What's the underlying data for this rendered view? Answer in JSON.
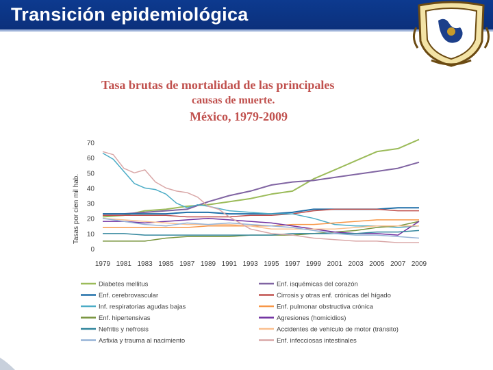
{
  "slide": {
    "title": "Transición epidemiológica"
  },
  "crest": {
    "icon": "unam-crest-icon"
  },
  "chart_data": {
    "type": "line",
    "title_lines": [
      "Tasa brutas de mortalidad de las principales",
      "causas de muerte.",
      "México, 1979-2009"
    ],
    "ylabel": "Tasas por cien mil hab.",
    "xlabel": "",
    "ylim": [
      0,
      70
    ],
    "yticks": [
      "70",
      "60",
      "50",
      "40",
      "30",
      "20",
      "10",
      "0"
    ],
    "xlim": [
      1979,
      2009
    ],
    "xticks": [
      "1979",
      "1981",
      "1983",
      "1985",
      "1987",
      "1989",
      "1991",
      "1993",
      "1995",
      "1997",
      "1999",
      "2001",
      "2003",
      "2005",
      "2007",
      "2009"
    ],
    "grid": false,
    "legend_position": "bottom",
    "series": [
      {
        "name": "Diabetes mellitus",
        "color": "#9bbb59",
        "width": 2,
        "x": [
          1979,
          1981,
          1983,
          1985,
          1987,
          1989,
          1991,
          1993,
          1995,
          1997,
          1999,
          2001,
          2003,
          2005,
          2007,
          2009
        ],
        "y": [
          21,
          22,
          25,
          26,
          28,
          29,
          31,
          33,
          36,
          38,
          46,
          52,
          58,
          64,
          66,
          72
        ]
      },
      {
        "name": "Enf. isquémicas del corazón",
        "color": "#8064a2",
        "width": 2,
        "x": [
          1979,
          1981,
          1983,
          1985,
          1987,
          1989,
          1991,
          1993,
          1995,
          1997,
          1999,
          2001,
          2003,
          2005,
          2007,
          2009
        ],
        "y": [
          23,
          23,
          24,
          25,
          26,
          31,
          35,
          38,
          42,
          44,
          45,
          47,
          49,
          51,
          53,
          57
        ]
      },
      {
        "name": "Enf. cerebrovascular",
        "color": "#1f6fa8",
        "width": 2,
        "x": [
          1979,
          1981,
          1983,
          1985,
          1987,
          1989,
          1991,
          1993,
          1995,
          1997,
          1999,
          2001,
          2003,
          2005,
          2007,
          2009
        ],
        "y": [
          23,
          23,
          23,
          23,
          24,
          24,
          23,
          23,
          23,
          24,
          26,
          26,
          26,
          26,
          27,
          27
        ]
      },
      {
        "name": "Cirrosis y otras enf. crónicas del hígado",
        "color": "#c0504d",
        "width": 1.5,
        "x": [
          1979,
          1981,
          1983,
          1985,
          1987,
          1989,
          1991,
          1993,
          1995,
          1997,
          1999,
          2001,
          2003,
          2005,
          2007,
          2009
        ],
        "y": [
          22,
          22,
          22,
          22,
          21,
          21,
          21,
          22,
          22,
          23,
          25,
          26,
          26,
          26,
          25,
          25
        ]
      },
      {
        "name": "Inf. respiratorias agudas bajas",
        "color": "#4bacc6",
        "width": 1.5,
        "x": [
          1979,
          1980,
          1981,
          1982,
          1983,
          1984,
          1985,
          1986,
          1987,
          1988,
          1989,
          1991,
          1993,
          1995,
          1997,
          1999,
          2001,
          2003,
          2005,
          2007,
          2009
        ],
        "y": [
          63,
          59,
          51,
          43,
          40,
          39,
          36,
          30,
          27,
          29,
          28,
          25,
          24,
          23,
          23,
          20,
          16,
          15,
          15,
          14,
          15
        ]
      },
      {
        "name": "Enf. pulmonar obstructiva crónica",
        "color": "#f79646",
        "width": 1.5,
        "x": [
          1979,
          1981,
          1983,
          1985,
          1987,
          1989,
          1991,
          1993,
          1995,
          1997,
          1999,
          2001,
          2003,
          2005,
          2007,
          2009
        ],
        "y": [
          14,
          14,
          14,
          14,
          14,
          15,
          15,
          15,
          15,
          16,
          16,
          17,
          18,
          19,
          19,
          19
        ]
      },
      {
        "name": "Enf. hipertensivas",
        "color": "#77933c",
        "width": 1.5,
        "x": [
          1979,
          1981,
          1983,
          1985,
          1987,
          1989,
          1991,
          1993,
          1995,
          1997,
          1999,
          2001,
          2003,
          2005,
          2007,
          2009
        ],
        "y": [
          5,
          5,
          5,
          7,
          8,
          8,
          8,
          9,
          9,
          9,
          10,
          11,
          12,
          14,
          15,
          18
        ]
      },
      {
        "name": "Agresiones (homicidios)",
        "color": "#7030a0",
        "width": 1.5,
        "x": [
          1979,
          1981,
          1983,
          1985,
          1987,
          1989,
          1991,
          1993,
          1995,
          1997,
          1999,
          2001,
          2003,
          2005,
          2007,
          2009
        ],
        "y": [
          18,
          18,
          17,
          18,
          19,
          20,
          19,
          18,
          17,
          15,
          13,
          11,
          10,
          10,
          9,
          18
        ]
      },
      {
        "name": "Nefritis y nefrosis",
        "color": "#31859c",
        "width": 1.5,
        "x": [
          1979,
          1981,
          1983,
          1985,
          1987,
          1989,
          1991,
          1993,
          1995,
          1997,
          1999,
          2001,
          2003,
          2005,
          2007,
          2009
        ],
        "y": [
          10,
          10,
          9,
          9,
          9,
          9,
          9,
          9,
          9,
          10,
          10,
          10,
          10,
          11,
          11,
          12
        ]
      },
      {
        "name": "Accidentes de vehículo de motor (tránsito)",
        "color": "#fac08f",
        "width": 1.5,
        "x": [
          1979,
          1981,
          1983,
          1985,
          1987,
          1989,
          1991,
          1993,
          1995,
          1997,
          1999,
          2001,
          2003,
          2005,
          2007,
          2009
        ],
        "y": [
          20,
          19,
          18,
          17,
          16,
          16,
          16,
          15,
          13,
          13,
          13,
          13,
          14,
          15,
          15,
          15
        ]
      },
      {
        "name": "Asfixia y trauma al nacimiento",
        "color": "#95b3d7",
        "width": 1.5,
        "x": [
          1979,
          1981,
          1983,
          1985,
          1987,
          1989,
          1991,
          1993,
          1995,
          1997,
          1999,
          2001,
          2003,
          2005,
          2007,
          2009
        ],
        "y": [
          20,
          18,
          16,
          15,
          17,
          16,
          17,
          16,
          15,
          14,
          12,
          10,
          9,
          9,
          8,
          7
        ]
      },
      {
        "name": "Enf. infecciosas intestinales",
        "color": "#d9a7a7",
        "width": 1.5,
        "x": [
          1979,
          1980,
          1981,
          1982,
          1983,
          1984,
          1985,
          1986,
          1987,
          1988,
          1989,
          1990,
          1991,
          1993,
          1995,
          1997,
          1999,
          2001,
          2003,
          2005,
          2007,
          2009
        ],
        "y": [
          64,
          62,
          53,
          50,
          52,
          44,
          40,
          38,
          37,
          34,
          28,
          26,
          21,
          13,
          10,
          9,
          7,
          6,
          5,
          5,
          4,
          4
        ]
      }
    ]
  }
}
